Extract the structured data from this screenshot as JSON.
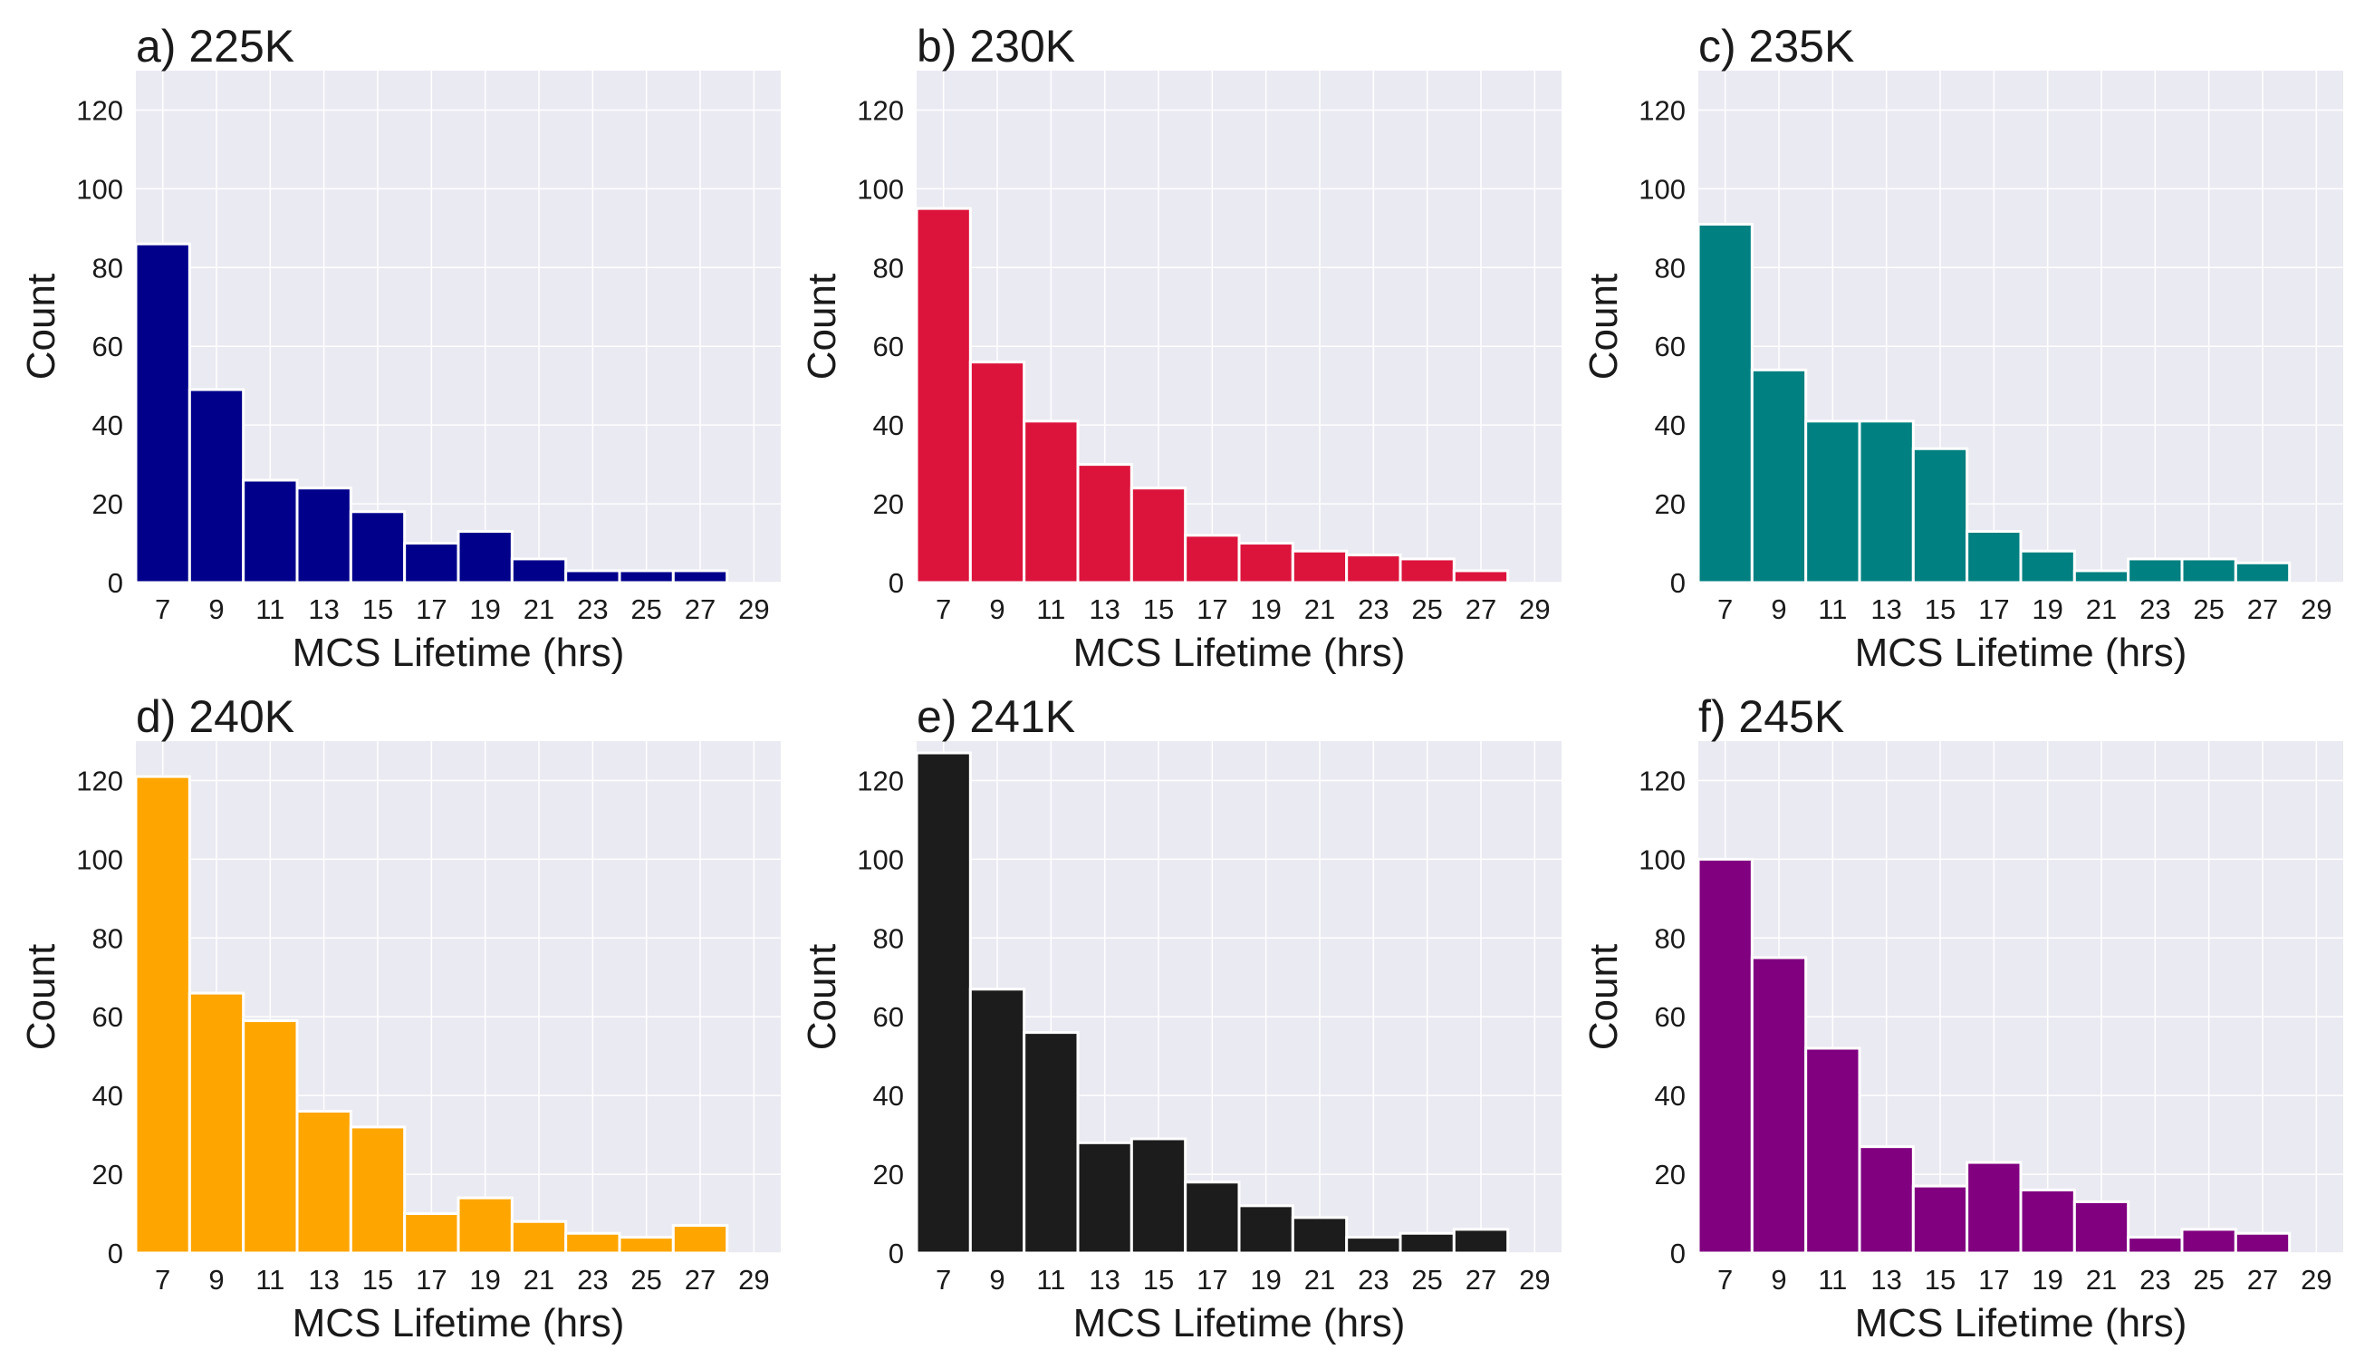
{
  "chart_data": [
    {
      "type": "bar",
      "title": "a) 225K",
      "xlabel": "MCS Lifetime (hrs)",
      "ylabel": "Count",
      "color": "#00008B",
      "x": [
        7,
        9,
        11,
        13,
        15,
        17,
        19,
        21,
        23,
        25,
        27,
        29
      ],
      "values": [
        86,
        49,
        26,
        24,
        18,
        10,
        13,
        6,
        3,
        3,
        3,
        0
      ],
      "xticks": [
        "7",
        "9",
        "11",
        "13",
        "15",
        "17",
        "19",
        "21",
        "23",
        "25",
        "27",
        "29"
      ],
      "yticks": [
        "0",
        "20",
        "40",
        "60",
        "80",
        "100",
        "120"
      ],
      "ylim": [
        0,
        130
      ],
      "grid": true
    },
    {
      "type": "bar",
      "title": "b) 230K",
      "xlabel": "MCS Lifetime (hrs)",
      "ylabel": "Count",
      "color": "#DC143C",
      "x": [
        7,
        9,
        11,
        13,
        15,
        17,
        19,
        21,
        23,
        25,
        27,
        29
      ],
      "values": [
        95,
        56,
        41,
        30,
        24,
        12,
        10,
        8,
        7,
        6,
        3,
        0
      ],
      "xticks": [
        "7",
        "9",
        "11",
        "13",
        "15",
        "17",
        "19",
        "21",
        "23",
        "25",
        "27",
        "29"
      ],
      "yticks": [
        "0",
        "20",
        "40",
        "60",
        "80",
        "100",
        "120"
      ],
      "ylim": [
        0,
        130
      ],
      "grid": true
    },
    {
      "type": "bar",
      "title": "c) 235K",
      "xlabel": "MCS Lifetime (hrs)",
      "ylabel": "Count",
      "color": "#008080",
      "x": [
        7,
        9,
        11,
        13,
        15,
        17,
        19,
        21,
        23,
        25,
        27,
        29
      ],
      "values": [
        91,
        54,
        41,
        41,
        34,
        13,
        8,
        3,
        6,
        6,
        5,
        0
      ],
      "xticks": [
        "7",
        "9",
        "11",
        "13",
        "15",
        "17",
        "19",
        "21",
        "23",
        "25",
        "27",
        "29"
      ],
      "yticks": [
        "0",
        "20",
        "40",
        "60",
        "80",
        "100",
        "120"
      ],
      "ylim": [
        0,
        130
      ],
      "grid": true
    },
    {
      "type": "bar",
      "title": "d) 240K",
      "xlabel": "MCS Lifetime (hrs)",
      "ylabel": "Count",
      "color": "#FFA500",
      "x": [
        7,
        9,
        11,
        13,
        15,
        17,
        19,
        21,
        23,
        25,
        27,
        29
      ],
      "values": [
        121,
        66,
        59,
        36,
        32,
        10,
        14,
        8,
        5,
        4,
        7,
        0
      ],
      "xticks": [
        "7",
        "9",
        "11",
        "13",
        "15",
        "17",
        "19",
        "21",
        "23",
        "25",
        "27",
        "29"
      ],
      "yticks": [
        "0",
        "20",
        "40",
        "60",
        "80",
        "100",
        "120"
      ],
      "ylim": [
        0,
        130
      ],
      "grid": true
    },
    {
      "type": "bar",
      "title": "e) 241K",
      "xlabel": "MCS Lifetime (hrs)",
      "ylabel": "Count",
      "color": "#1C1C1C",
      "x": [
        7,
        9,
        11,
        13,
        15,
        17,
        19,
        21,
        23,
        25,
        27,
        29
      ],
      "values": [
        127,
        67,
        56,
        28,
        29,
        18,
        12,
        9,
        4,
        5,
        6,
        0
      ],
      "xticks": [
        "7",
        "9",
        "11",
        "13",
        "15",
        "17",
        "19",
        "21",
        "23",
        "25",
        "27",
        "29"
      ],
      "yticks": [
        "0",
        "20",
        "40",
        "60",
        "80",
        "100",
        "120"
      ],
      "ylim": [
        0,
        130
      ],
      "grid": true
    },
    {
      "type": "bar",
      "title": "f) 245K",
      "xlabel": "MCS Lifetime (hrs)",
      "ylabel": "Count",
      "color": "#800080",
      "x": [
        7,
        9,
        11,
        13,
        15,
        17,
        19,
        21,
        23,
        25,
        27,
        29
      ],
      "values": [
        100,
        75,
        52,
        27,
        17,
        23,
        16,
        13,
        4,
        6,
        5,
        0
      ],
      "xticks": [
        "7",
        "9",
        "11",
        "13",
        "15",
        "17",
        "19",
        "21",
        "23",
        "25",
        "27",
        "29"
      ],
      "yticks": [
        "0",
        "20",
        "40",
        "60",
        "80",
        "100",
        "120"
      ],
      "ylim": [
        0,
        130
      ],
      "grid": true
    }
  ],
  "style": {
    "plot_background": "#EAEAF2",
    "grid_color": "#FFFFFF",
    "bar_edge_color": "#FFFFFF"
  }
}
